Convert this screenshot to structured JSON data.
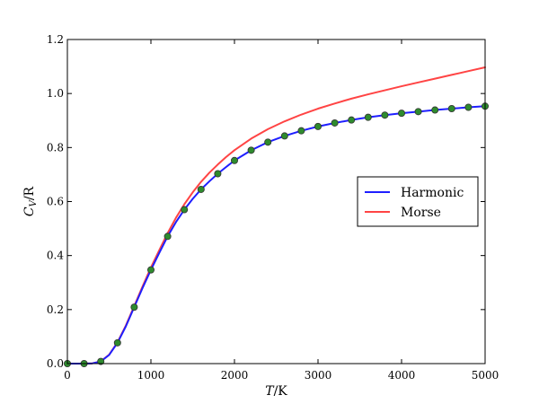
{
  "chart_data": {
    "type": "line",
    "xlabel": "T/K",
    "ylabel": "C_V/R",
    "xlim": [
      0,
      5000
    ],
    "ylim": [
      0.0,
      1.2
    ],
    "xticks": [
      "0",
      "1000",
      "2000",
      "3000",
      "4000",
      "5000"
    ],
    "yticks": [
      "0.0",
      "0.2",
      "0.4",
      "0.6",
      "0.8",
      "1.0",
      "1.2"
    ],
    "grid": false,
    "legend_position": "center-right",
    "series": [
      {
        "name": "Harmonic",
        "style": "line",
        "color": "#1f1fff",
        "x": [
          0,
          100,
          200,
          300,
          400,
          500,
          600,
          700,
          800,
          900,
          1000,
          1100,
          1200,
          1300,
          1400,
          1500,
          1600,
          1700,
          1800,
          1900,
          2000,
          2200,
          2400,
          2600,
          2800,
          3000,
          3200,
          3400,
          3600,
          3800,
          4000,
          4200,
          4400,
          4600,
          4800,
          5000
        ],
        "y": [
          0.0,
          0.0,
          0.0,
          0.001,
          0.008,
          0.032,
          0.077,
          0.138,
          0.209,
          0.28,
          0.347,
          0.41,
          0.471,
          0.524,
          0.57,
          0.61,
          0.645,
          0.675,
          0.703,
          0.728,
          0.752,
          0.79,
          0.82,
          0.843,
          0.862,
          0.878,
          0.891,
          0.902,
          0.912,
          0.92,
          0.927,
          0.933,
          0.939,
          0.944,
          0.949,
          0.953
        ]
      },
      {
        "name": "Morse",
        "style": "line",
        "color": "#ff4444",
        "x": [
          0,
          100,
          200,
          300,
          400,
          500,
          600,
          700,
          800,
          900,
          1000,
          1100,
          1200,
          1300,
          1400,
          1500,
          1600,
          1700,
          1800,
          1900,
          2000,
          2200,
          2400,
          2600,
          2800,
          3000,
          3200,
          3400,
          3600,
          3800,
          4000,
          4200,
          4400,
          4600,
          4800,
          5000
        ],
        "y": [
          0.0,
          0.0,
          0.0,
          0.001,
          0.008,
          0.033,
          0.079,
          0.141,
          0.213,
          0.286,
          0.356,
          0.42,
          0.483,
          0.54,
          0.59,
          0.634,
          0.673,
          0.707,
          0.737,
          0.765,
          0.79,
          0.833,
          0.868,
          0.897,
          0.922,
          0.944,
          0.963,
          0.981,
          0.997,
          1.012,
          1.027,
          1.041,
          1.055,
          1.069,
          1.083,
          1.097
        ]
      },
      {
        "style": "markers",
        "color": "#2e8b2e",
        "x": [
          0,
          200,
          400,
          600,
          800,
          1000,
          1200,
          1400,
          1600,
          1800,
          2000,
          2200,
          2400,
          2600,
          2800,
          3000,
          3200,
          3400,
          3600,
          3800,
          4000,
          4200,
          4400,
          4600,
          4800,
          5000
        ],
        "y": [
          0.0,
          0.0,
          0.008,
          0.077,
          0.209,
          0.347,
          0.471,
          0.57,
          0.645,
          0.703,
          0.752,
          0.79,
          0.82,
          0.843,
          0.862,
          0.878,
          0.891,
          0.902,
          0.912,
          0.92,
          0.927,
          0.933,
          0.939,
          0.944,
          0.949,
          0.953
        ]
      }
    ]
  }
}
